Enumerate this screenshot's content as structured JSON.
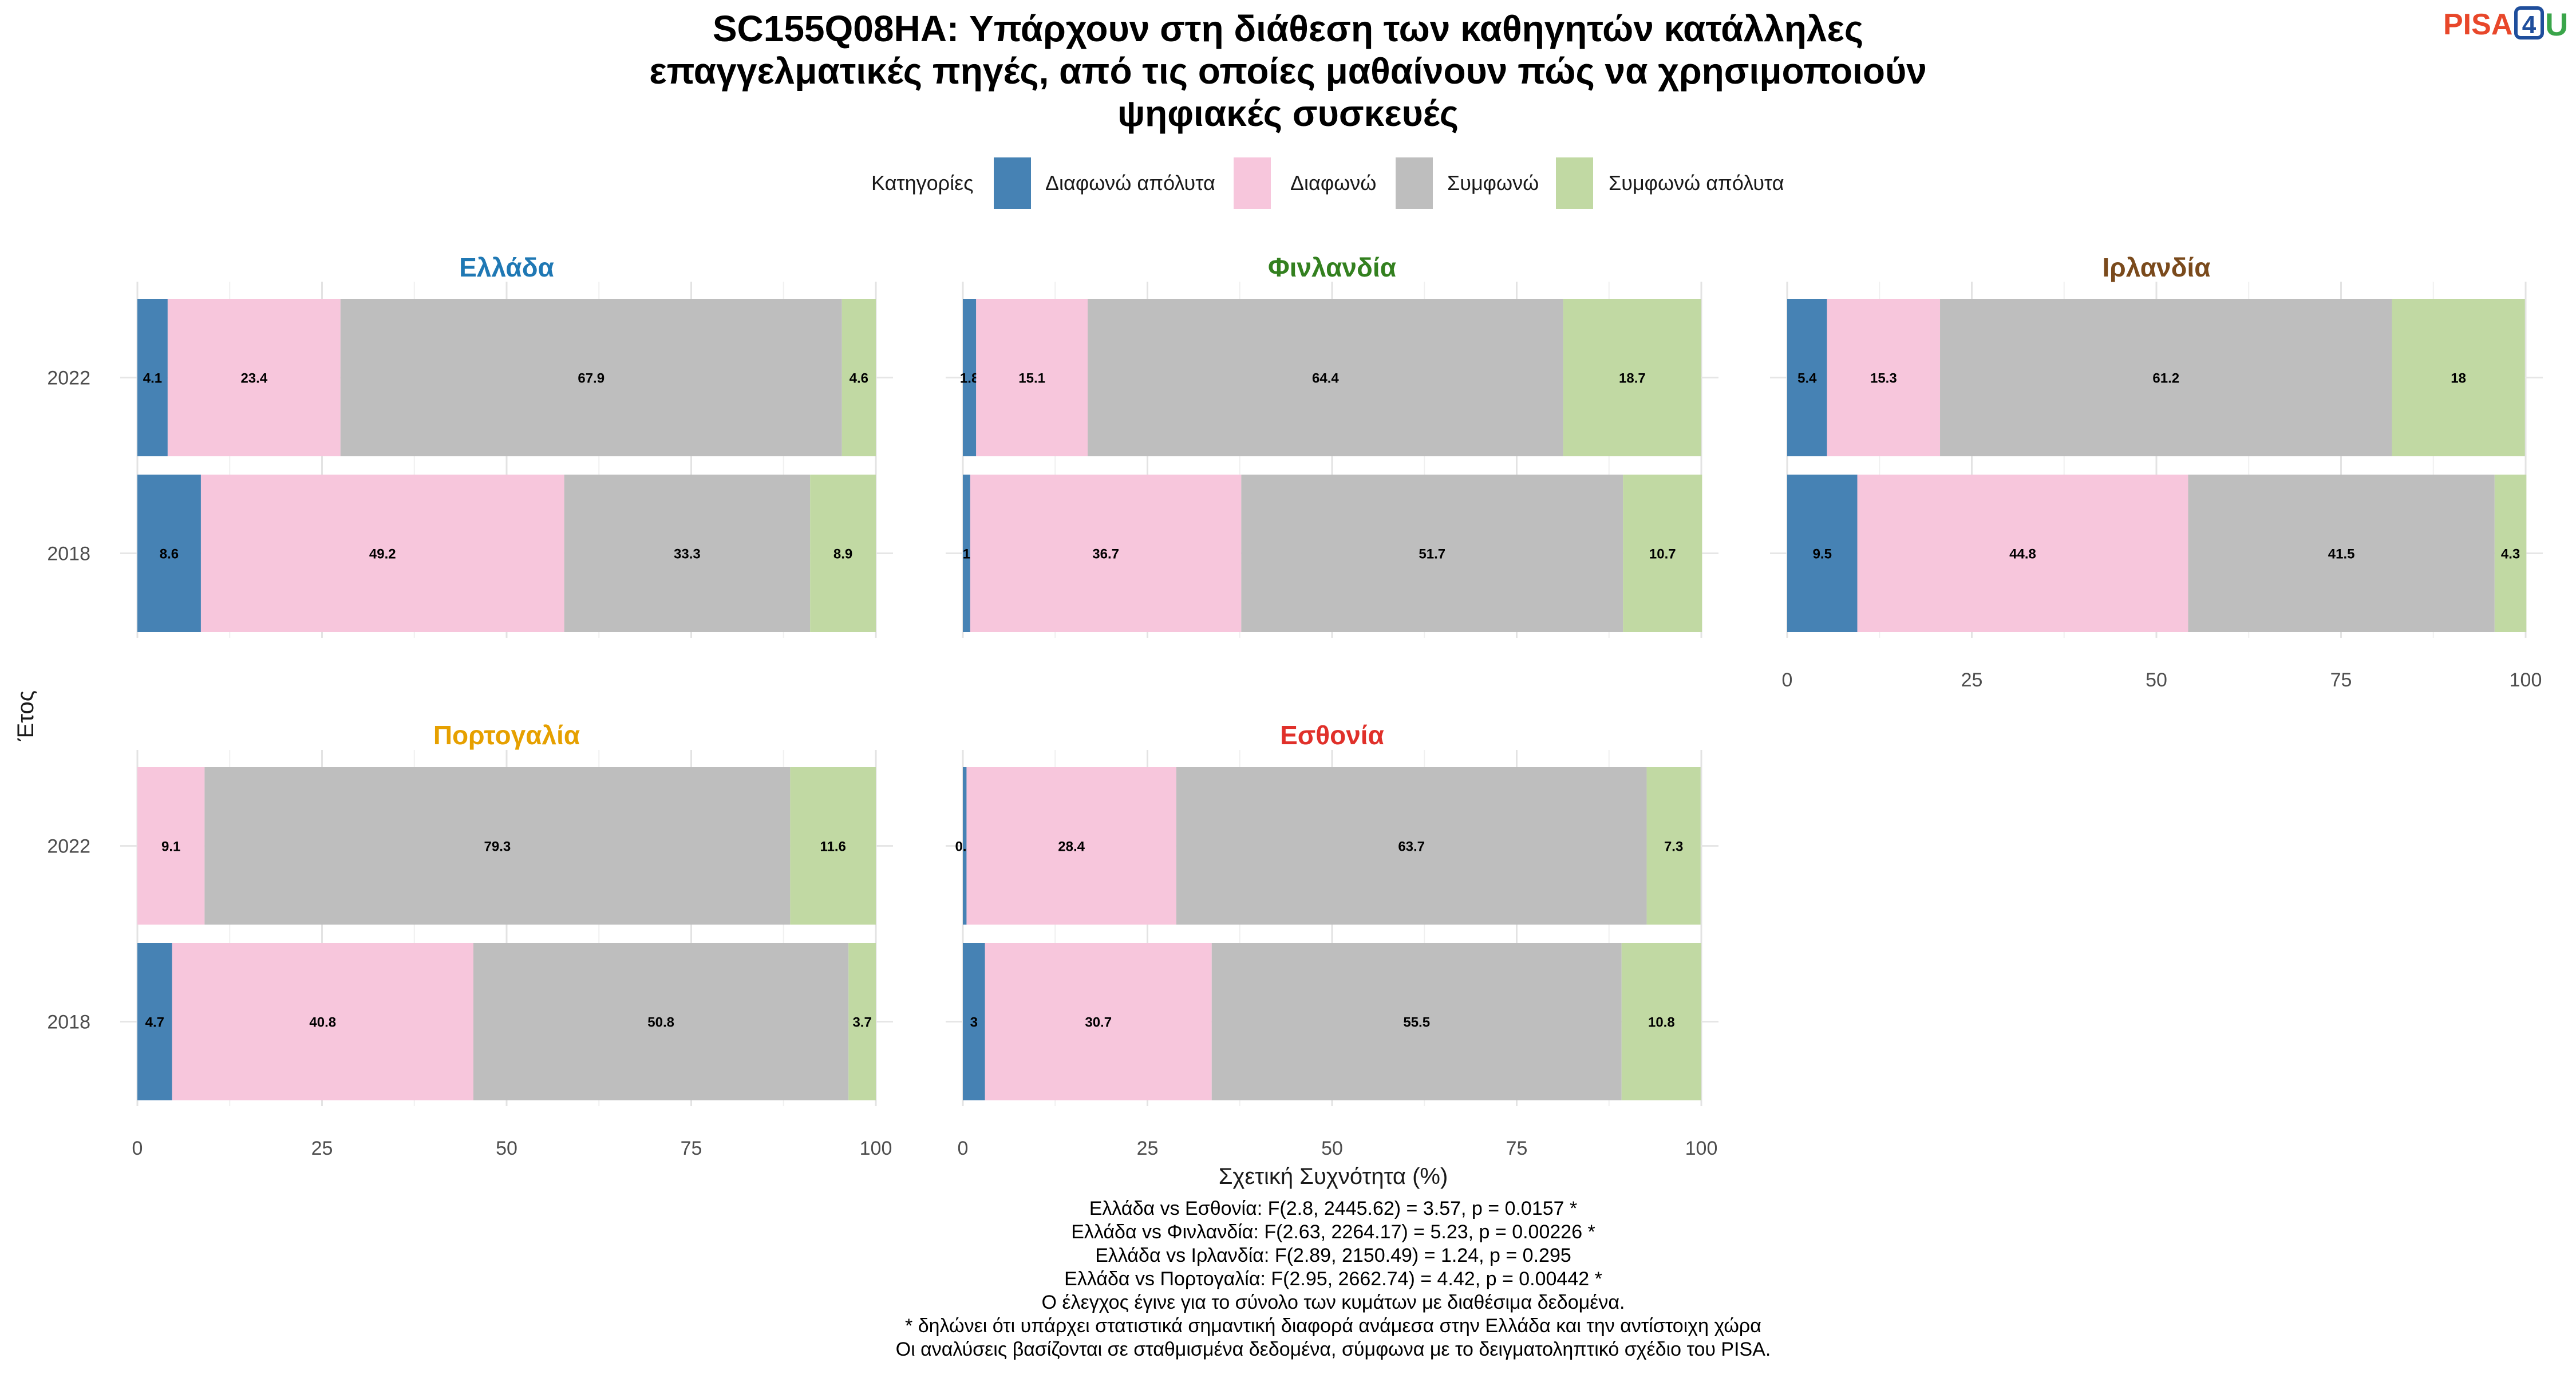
{
  "title_lines": [
    "SC155Q08HA: Υπάρχουν στη διάθεση των καθηγητών κατάλληλες",
    "επαγγελματικές πηγές, από τις οποίες μαθαίνουν πώς να χρησιμοποιούν",
    "ψηφιακές συσκευές"
  ],
  "logo": {
    "text": "PISA",
    "digit": "4",
    "suffix": "U",
    "colors": {
      "pisa": "#e8472a",
      "digit": "#1f4e9c",
      "suffix": "#3aa54a"
    }
  },
  "legend": {
    "title": "Κατηγορίες",
    "items": [
      {
        "label": "Διαφωνώ απόλυτα",
        "color": "#4682b4"
      },
      {
        "label": "Διαφωνώ",
        "color": "#f7c6dc"
      },
      {
        "label": "Συμφωνώ",
        "color": "#bebebe"
      },
      {
        "label": "Συμφωνώ απόλυτα",
        "color": "#c1d9a3"
      }
    ]
  },
  "chart_data": {
    "type": "bar",
    "orientation": "horizontal",
    "stacked": true,
    "xlabel": "Σχετική Συχνότητα (%)",
    "ylabel": "Έτος",
    "xlim": [
      0,
      100
    ],
    "x_ticks": [
      "0",
      "25",
      "50",
      "75",
      "100"
    ],
    "categories": [
      "2022",
      "2018"
    ],
    "series_names": [
      "Διαφωνώ απόλυτα",
      "Διαφωνώ",
      "Συμφωνώ",
      "Συμφωνώ απόλυτα"
    ],
    "panels": [
      {
        "country": "Ελλάδα",
        "title_color": "#1f78b4",
        "bars": [
          {
            "year": "2022",
            "values": [
              4.1,
              23.4,
              67.9,
              4.6
            ]
          },
          {
            "year": "2018",
            "values": [
              8.6,
              49.2,
              33.3,
              8.9
            ]
          }
        ]
      },
      {
        "country": "Φινλανδία",
        "title_color": "#33801f",
        "bars": [
          {
            "year": "2022",
            "values": [
              1.8,
              15.1,
              64.4,
              18.7
            ]
          },
          {
            "year": "2018",
            "values": [
              1,
              36.7,
              51.7,
              10.7
            ]
          }
        ]
      },
      {
        "country": "Ιρλανδία",
        "title_color": "#7a4a1c",
        "bars": [
          {
            "year": "2022",
            "values": [
              5.4,
              15.3,
              61.2,
              18
            ]
          },
          {
            "year": "2018",
            "values": [
              9.5,
              44.8,
              41.5,
              4.3
            ]
          }
        ]
      },
      {
        "country": "Πορτογαλία",
        "title_color": "#e6a000",
        "bars": [
          {
            "year": "2022",
            "values": [
              0,
              9.1,
              79.3,
              11.6
            ]
          },
          {
            "year": "2018",
            "values": [
              4.7,
              40.8,
              50.8,
              3.7
            ]
          }
        ]
      },
      {
        "country": "Εσθονία",
        "title_color": "#e0302a",
        "bars": [
          {
            "year": "2022",
            "values": [
              0.5,
              28.4,
              63.7,
              7.3
            ]
          },
          {
            "year": "2018",
            "values": [
              3,
              30.7,
              55.5,
              10.8
            ]
          }
        ]
      }
    ]
  },
  "footer_lines": [
    "Ελλάδα vs Εσθονία: F(2.8, 2445.62) = 3.57, p = 0.0157 *",
    "Ελλάδα vs Φινλανδία: F(2.63, 2264.17) = 5.23, p = 0.00226 *",
    "Ελλάδα vs Ιρλανδία: F(2.89, 2150.49) = 1.24, p = 0.295",
    "Ελλάδα vs Πορτογαλία: F(2.95, 2662.74) = 4.42, p = 0.00442 *",
    "Ο έλεγχος έγινε για το σύνολο των κυμάτων με διαθέσιμα δεδομένα.",
    "* δηλώνει ότι υπάρχει στατιστικά σημαντική διαφορά ανάμεσα στην Ελλάδα και την αντίστοιχη χώρα",
    "Οι αναλύσεις βασίζονται σε σταθμισμένα δεδομένα, σύμφωνα με το δειγματοληπτικό σχέδιο του PISA."
  ]
}
